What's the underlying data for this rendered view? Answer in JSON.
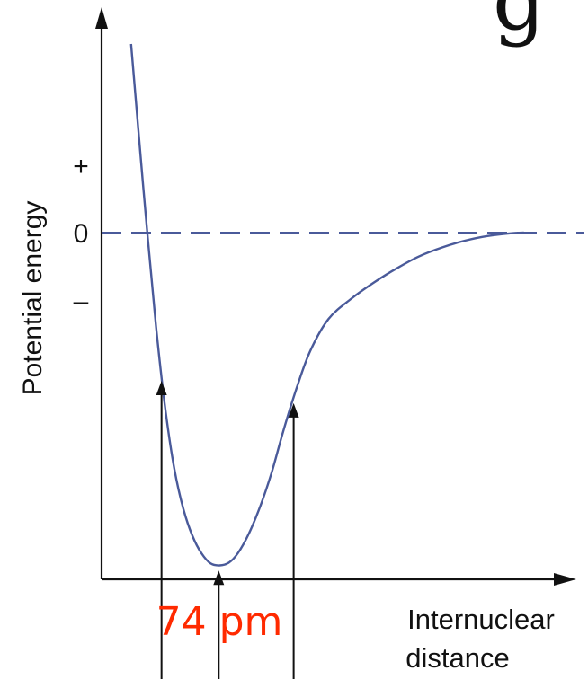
{
  "chart_data": {
    "type": "line",
    "title": "",
    "ylabel": "Potential energy",
    "xlabel_lines": [
      "Internuclear",
      "distance"
    ],
    "y_ticks": [
      {
        "label": "+",
        "value": 1
      },
      {
        "label": "0",
        "value": 0
      },
      {
        "label": "–",
        "value": -1
      }
    ],
    "xlim": [
      0,
      100
    ],
    "ylim": [
      -5.12,
      3.25
    ],
    "grid": false,
    "zero_line": {
      "value": 0,
      "style": "dashed"
    },
    "series": [
      {
        "x": [
          6.5,
          8.0,
          10.0,
          12.0,
          14.0,
          16.0,
          18.0,
          20.0,
          22.0,
          24.0,
          26.0,
          28.0,
          30.0,
          32.5,
          35.0,
          37.5,
          40.0,
          43.0,
          46.0,
          50.0,
          55.0,
          60.0,
          65.0,
          70.0,
          75.0,
          80.0,
          85.0,
          90.0,
          93.0
        ],
        "y": [
          2.8,
          1.6,
          0.05,
          -1.4,
          -2.6,
          -3.5,
          -4.1,
          -4.5,
          -4.76,
          -4.91,
          -4.94,
          -4.9,
          -4.76,
          -4.46,
          -4.05,
          -3.55,
          -2.95,
          -2.3,
          -1.75,
          -1.28,
          -0.98,
          -0.74,
          -0.53,
          -0.35,
          -0.22,
          -0.12,
          -0.05,
          -0.01,
          0.0
        ]
      }
    ],
    "markers": [
      {
        "x": 13.2
      },
      {
        "x": 25.8
      },
      {
        "x": 42.3
      }
    ],
    "annotations": [
      {
        "text": "74 pm",
        "color": "#ff2a00"
      }
    ],
    "colors": {
      "curve": "#4a5a9a",
      "zero_line": "#4a5a9a",
      "axes": "#111111",
      "annotation": "#ff2a00"
    }
  },
  "corner_glyph": "g"
}
